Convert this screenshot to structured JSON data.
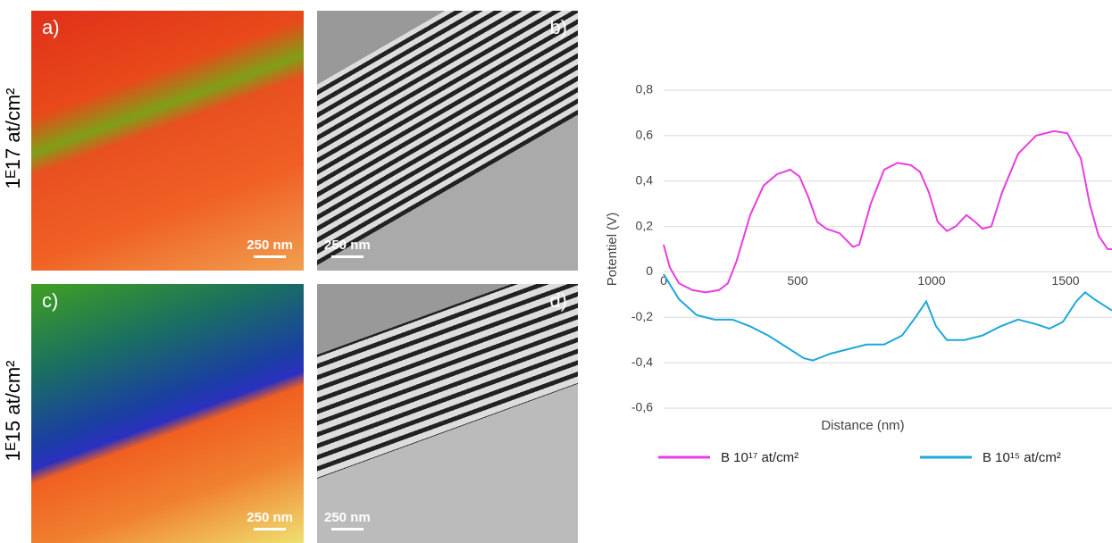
{
  "figure": {
    "rows": [
      "1ᴱ17 at/cm²",
      "1ᴱ15 at/cm²"
    ],
    "panels": [
      {
        "label": "a)",
        "scale": "250 nm"
      },
      {
        "label": "b)",
        "scale": "250 nm"
      },
      {
        "label": "c)",
        "scale": "250 nm"
      },
      {
        "label": "d)",
        "scale": "250 nm"
      }
    ]
  },
  "chart_data": {
    "type": "line",
    "xlabel": "Distance (nm)",
    "ylabel": "Potentiel (V)",
    "xlim": [
      0,
      1675
    ],
    "ylim": [
      -0.6,
      0.8
    ],
    "xticks": [
      0,
      500,
      1000,
      1500
    ],
    "yticks": [
      {
        "value": -0.6,
        "label": "-0,6"
      },
      {
        "value": -0.4,
        "label": "-0,4"
      },
      {
        "value": -0.2,
        "label": "-0,2"
      },
      0,
      {
        "value": 0.2,
        "label": "0,2"
      },
      {
        "value": 0.4,
        "label": "0,4"
      },
      {
        "value": 0.6,
        "label": "0,6"
      },
      {
        "value": 0.8,
        "label": "0,8"
      }
    ],
    "grid": true,
    "series": [
      {
        "name": "B 10¹⁷ at/cm²",
        "color": "#e83de0",
        "x": [
          0,
          23,
          57,
          107,
          157,
          207,
          240,
          273,
          323,
          373,
          423,
          473,
          507,
          540,
          573,
          607,
          657,
          707,
          730,
          773,
          823,
          873,
          923,
          957,
          990,
          1023,
          1057,
          1090,
          1130,
          1163,
          1190,
          1223,
          1263,
          1323,
          1390,
          1457,
          1507,
          1557,
          1590,
          1623,
          1657,
          1673
        ],
        "values": [
          0.12,
          0.02,
          -0.05,
          -0.08,
          -0.09,
          -0.08,
          -0.05,
          0.05,
          0.25,
          0.38,
          0.43,
          0.45,
          0.42,
          0.33,
          0.22,
          0.19,
          0.17,
          0.11,
          0.12,
          0.3,
          0.45,
          0.48,
          0.47,
          0.44,
          0.35,
          0.22,
          0.18,
          0.2,
          0.25,
          0.22,
          0.19,
          0.2,
          0.35,
          0.52,
          0.6,
          0.62,
          0.61,
          0.5,
          0.3,
          0.16,
          0.1,
          0.1
        ]
      },
      {
        "name": "B 10¹⁵ at/cm²",
        "color": "#1ea7d8",
        "x": [
          0,
          57,
          123,
          190,
          257,
          323,
          390,
          457,
          523,
          557,
          623,
          690,
          757,
          823,
          890,
          940,
          980,
          1017,
          1057,
          1123,
          1190,
          1257,
          1323,
          1390,
          1440,
          1490,
          1540,
          1573,
          1607,
          1673
        ],
        "values": [
          -0.01,
          -0.12,
          -0.19,
          -0.21,
          -0.21,
          -0.24,
          -0.28,
          -0.33,
          -0.38,
          -0.39,
          -0.36,
          -0.34,
          -0.32,
          -0.32,
          -0.28,
          -0.2,
          -0.13,
          -0.24,
          -0.3,
          -0.3,
          -0.28,
          -0.24,
          -0.21,
          -0.23,
          -0.25,
          -0.22,
          -0.13,
          -0.09,
          -0.12,
          -0.17
        ]
      }
    ]
  }
}
